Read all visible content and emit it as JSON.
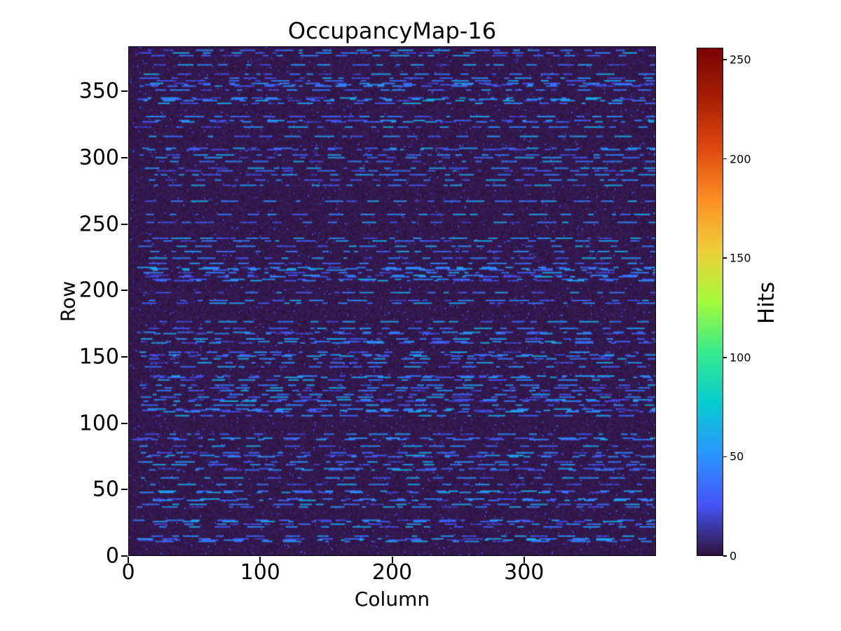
{
  "chart_data": {
    "type": "heatmap",
    "title": "OccupancyMap-16",
    "xlabel": "Column",
    "ylabel": "Row",
    "colorbar_label": "Hits",
    "x_range": [
      0,
      400
    ],
    "y_range": [
      0,
      384
    ],
    "x_ticks": [
      0,
      100,
      200,
      300
    ],
    "y_ticks": [
      0,
      50,
      100,
      150,
      200,
      250,
      300,
      350
    ],
    "colorbar_ticks": [
      0,
      50,
      100,
      150,
      200,
      250
    ],
    "value_range": [
      0,
      256
    ],
    "grid": {
      "cols": 400,
      "rows": 384,
      "grid_lines": false
    },
    "legend_position": "right-colorbar",
    "colormap": {
      "name": "turbo",
      "stops": [
        "#30123b",
        "#4654fa",
        "#2996fe",
        "#07cbd1",
        "#35ea8d",
        "#a4fa3b",
        "#eecf3a",
        "#fd8f22",
        "#df4a0f",
        "#a71f04",
        "#7a0403"
      ]
    },
    "pattern": {
      "description": "mostly near-zero dark background with sparse horizontal dash segments of low hit counts (blue, ~18-65 hits) on random rows",
      "seed": 16,
      "active_row_probability": 0.25,
      "dash_length_range": [
        3,
        16
      ],
      "gap_length_range": [
        2,
        20
      ],
      "dash_value_range": [
        18,
        65
      ],
      "background_value_range": [
        0,
        5
      ],
      "speckle_probability": 0.015,
      "speckle_value_range": [
        8,
        32
      ]
    },
    "colors": {
      "figure_background": "#ffffff",
      "heatmap_background": "#30123b",
      "dash_bright": "#3f8bf9",
      "dash_dim": "#4145cd",
      "axis": "#000000"
    }
  }
}
